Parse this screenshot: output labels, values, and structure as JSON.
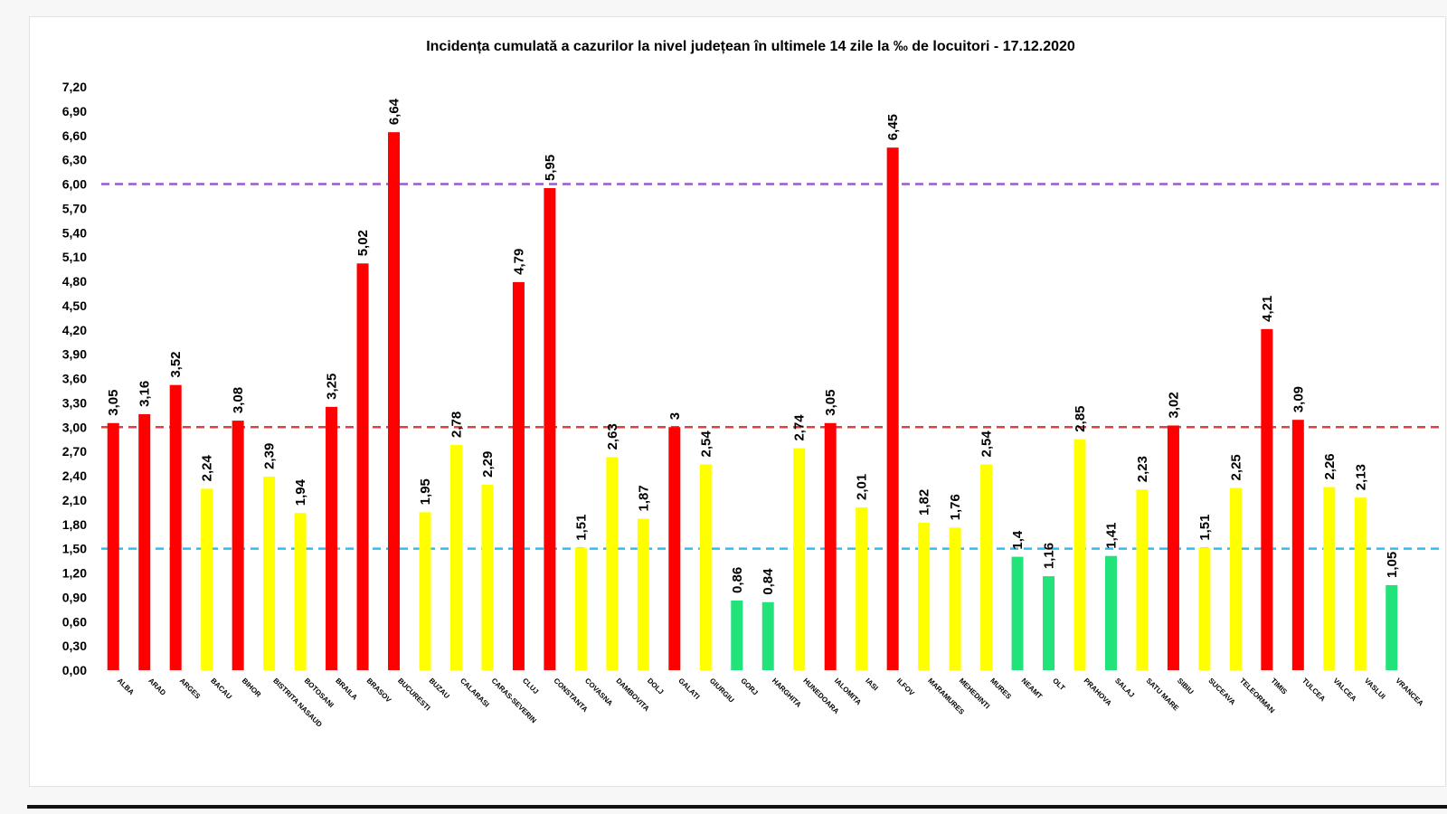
{
  "chart_data": {
    "type": "bar",
    "title": "Incidența cumulată a cazurilor la nivel județean în ultimele 14 zile la ‰ de locuitori - 17.12.2020",
    "xlabel": "",
    "ylabel": "",
    "ylim": [
      0,
      7.2
    ],
    "yticks": [
      "0,00",
      "0,30",
      "0,60",
      "0,90",
      "1,20",
      "1,50",
      "1,80",
      "2,10",
      "2,40",
      "2,70",
      "3,00",
      "3,30",
      "3,60",
      "3,90",
      "4,20",
      "4,50",
      "4,80",
      "5,10",
      "5,40",
      "5,70",
      "6,00",
      "6,30",
      "6,60",
      "6,90",
      "7,20"
    ],
    "categories": [
      "ALBA",
      "ARAD",
      "ARGES",
      "BACAU",
      "BIHOR",
      "BISTRITA NASAUD",
      "BOTOSANI",
      "BRAILA",
      "BRASOV",
      "BUCURESTI",
      "BUZAU",
      "CALARASI",
      "CARAS-SEVERIN",
      "CLUJ",
      "CONSTANTA",
      "COVASNA",
      "DAMBOVITA",
      "DOLJ",
      "GALATI",
      "GIURGIU",
      "GORJ",
      "HARGHITA",
      "HUNEDOARA",
      "IALOMITA",
      "IASI",
      "ILFOV",
      "MARAMURES",
      "MEHEDINTI",
      "MURES",
      "NEAMT",
      "OLT",
      "PRAHOVA",
      "SALAJ",
      "SATU MARE",
      "SIBIU",
      "SUCEAVA",
      "TELEORMAN",
      "TIMIS",
      "TULCEA",
      "VALCEA",
      "VASLUI",
      "VRANCEA"
    ],
    "values": [
      3.05,
      3.16,
      3.52,
      2.24,
      3.08,
      2.39,
      1.94,
      3.25,
      5.02,
      6.64,
      1.95,
      2.78,
      2.29,
      4.79,
      5.95,
      1.51,
      2.63,
      1.87,
      3,
      2.54,
      0.86,
      0.84,
      2.74,
      3.05,
      2.01,
      6.45,
      1.82,
      1.76,
      2.54,
      1.4,
      1.16,
      2.85,
      1.41,
      2.23,
      3.02,
      1.51,
      2.25,
      4.21,
      3.09,
      2.26,
      2.13,
      1.05
    ],
    "value_labels": [
      "3,05",
      "3,16",
      "3,52",
      "2,24",
      "3,08",
      "2,39",
      "1,94",
      "3,25",
      "5,02",
      "6,64",
      "1,95",
      "2,78",
      "2,29",
      "4,79",
      "5,95",
      "1,51",
      "2,63",
      "1,87",
      "3",
      "2,54",
      "0,86",
      "0,84",
      "2,74",
      "3,05",
      "2,01",
      "6,45",
      "1,82",
      "1,76",
      "2,54",
      "1,4",
      "1,16",
      "2,85",
      "1,41",
      "2,23",
      "3,02",
      "1,51",
      "2,25",
      "4,21",
      "3,09",
      "2,26",
      "2,13",
      "1,05"
    ],
    "colors": [
      "red",
      "red",
      "red",
      "yellow",
      "red",
      "yellow",
      "yellow",
      "red",
      "red",
      "red",
      "yellow",
      "yellow",
      "yellow",
      "red",
      "red",
      "yellow",
      "yellow",
      "yellow",
      "red",
      "yellow",
      "green",
      "green",
      "yellow",
      "red",
      "yellow",
      "red",
      "yellow",
      "yellow",
      "yellow",
      "green",
      "green",
      "yellow",
      "green",
      "yellow",
      "red",
      "yellow",
      "yellow",
      "red",
      "red",
      "yellow",
      "yellow",
      "green"
    ],
    "palette": {
      "red": "#ff0000",
      "yellow": "#ffff00",
      "green": "#22e37a"
    },
    "threshold_lines": [
      {
        "value": 6.0,
        "color": "#9b59d0",
        "style": "dashed"
      },
      {
        "value": 3.0,
        "color": "#e04040",
        "style": "dashed"
      },
      {
        "value": 1.5,
        "color": "#33bbee",
        "style": "dashed"
      }
    ],
    "grid": false,
    "legend": "none"
  }
}
